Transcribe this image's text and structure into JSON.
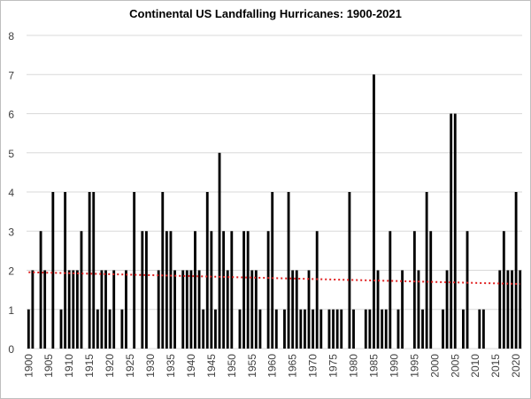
{
  "chart_data": {
    "type": "bar",
    "title": "Continental US Landfalling Hurricanes: 1900-2021",
    "xlabel": "",
    "ylabel": "",
    "ylim": [
      0,
      8
    ],
    "yticks": [
      0,
      1,
      2,
      3,
      4,
      5,
      6,
      7,
      8
    ],
    "grid": true,
    "legend": "none",
    "xtick_labels": [
      "1900",
      "1905",
      "1910",
      "1915",
      "1920",
      "1925",
      "1930",
      "1935",
      "1940",
      "1945",
      "1950",
      "1955",
      "1960",
      "1965",
      "1970",
      "1975",
      "1980",
      "1985",
      "1990",
      "1995",
      "2000",
      "2005",
      "2010",
      "2015",
      "2020"
    ],
    "bar_color": "#000000",
    "trendline": {
      "style": "dotted",
      "color": "#e02020",
      "start": {
        "x": 1900,
        "y": 1.95
      },
      "end": {
        "x": 2021,
        "y": 1.65
      }
    },
    "x": [
      1900,
      1901,
      1902,
      1903,
      1904,
      1905,
      1906,
      1907,
      1908,
      1909,
      1910,
      1911,
      1912,
      1913,
      1914,
      1915,
      1916,
      1917,
      1918,
      1919,
      1920,
      1921,
      1922,
      1923,
      1924,
      1925,
      1926,
      1927,
      1928,
      1929,
      1930,
      1931,
      1932,
      1933,
      1934,
      1935,
      1936,
      1937,
      1938,
      1939,
      1940,
      1941,
      1942,
      1943,
      1944,
      1945,
      1946,
      1947,
      1948,
      1949,
      1950,
      1951,
      1952,
      1953,
      1954,
      1955,
      1956,
      1957,
      1958,
      1959,
      1960,
      1961,
      1962,
      1963,
      1964,
      1965,
      1966,
      1967,
      1968,
      1969,
      1970,
      1971,
      1972,
      1973,
      1974,
      1975,
      1976,
      1977,
      1978,
      1979,
      1980,
      1981,
      1982,
      1983,
      1984,
      1985,
      1986,
      1987,
      1988,
      1989,
      1990,
      1991,
      1992,
      1993,
      1994,
      1995,
      1996,
      1997,
      1998,
      1999,
      2000,
      2001,
      2002,
      2003,
      2004,
      2005,
      2006,
      2007,
      2008,
      2009,
      2010,
      2011,
      2012,
      2013,
      2014,
      2015,
      2016,
      2017,
      2018,
      2019,
      2020,
      2021
    ],
    "values": [
      1,
      2,
      0,
      3,
      2,
      0,
      4,
      0,
      1,
      4,
      2,
      2,
      2,
      3,
      0,
      4,
      4,
      1,
      2,
      2,
      1,
      2,
      0,
      1,
      2,
      0,
      4,
      0,
      3,
      3,
      0,
      0,
      2,
      4,
      3,
      3,
      2,
      0,
      2,
      2,
      2,
      3,
      2,
      1,
      4,
      3,
      1,
      5,
      3,
      2,
      3,
      0,
      1,
      3,
      3,
      2,
      2,
      1,
      0,
      3,
      4,
      1,
      0,
      1,
      4,
      2,
      2,
      1,
      1,
      2,
      1,
      3,
      1,
      0,
      1,
      1,
      1,
      1,
      0,
      4,
      1,
      0,
      0,
      1,
      1,
      7,
      2,
      1,
      1,
      3,
      0,
      1,
      2,
      0,
      0,
      3,
      2,
      1,
      4,
      3,
      0,
      0,
      1,
      2,
      6,
      6,
      0,
      1,
      3,
      0,
      0,
      1,
      1,
      0,
      0,
      0,
      2,
      3,
      2,
      2,
      4,
      2
    ]
  }
}
